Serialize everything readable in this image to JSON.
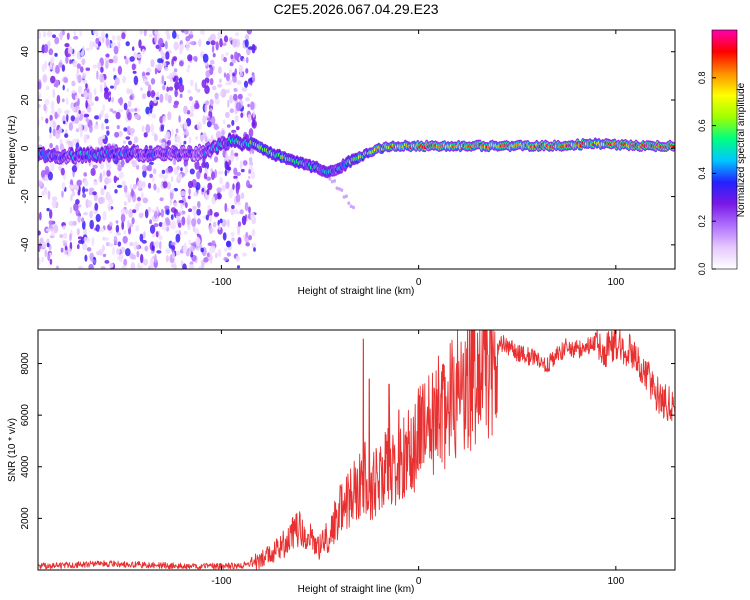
{
  "title": "C2E5.2026.067.04.29.E23",
  "chart_data": [
    {
      "type": "heatmap",
      "name": "spectrogram",
      "xlabel": "Height of straight line (km)",
      "ylabel": "Frequency (Hz)",
      "xlim": [
        -193,
        130
      ],
      "ylim": [
        -50,
        49
      ],
      "xticks": [
        -100,
        0,
        100
      ],
      "yticks": [
        -40,
        -20,
        0,
        20,
        40
      ],
      "tick_labels_x": [
        "-100",
        "0",
        "100"
      ],
      "tick_labels_y": [
        "-40",
        "-20",
        "0",
        "20",
        "40"
      ],
      "noise_region_x": [
        -193,
        -83
      ],
      "noise_freq_range": [
        -50,
        49
      ],
      "ridge": [
        {
          "x": -193,
          "y": -3,
          "amp": 0.35
        },
        {
          "x": -170,
          "y": -3,
          "amp": 0.38
        },
        {
          "x": -150,
          "y": -2,
          "amp": 0.36
        },
        {
          "x": -130,
          "y": -2,
          "amp": 0.33
        },
        {
          "x": -110,
          "y": -2,
          "amp": 0.3
        },
        {
          "x": -95,
          "y": 3,
          "amp": 0.45
        },
        {
          "x": -85,
          "y": 2,
          "amp": 0.6
        },
        {
          "x": -80,
          "y": 0,
          "amp": 0.7
        },
        {
          "x": -75,
          "y": -2,
          "amp": 0.55
        },
        {
          "x": -68,
          "y": -4,
          "amp": 0.6
        },
        {
          "x": -60,
          "y": -6,
          "amp": 0.5
        },
        {
          "x": -52,
          "y": -8,
          "amp": 0.45
        },
        {
          "x": -45,
          "y": -10,
          "amp": 0.4
        },
        {
          "x": -40,
          "y": -8,
          "amp": 0.45
        },
        {
          "x": -34,
          "y": -5,
          "amp": 0.55
        },
        {
          "x": -28,
          "y": -3,
          "amp": 0.6
        },
        {
          "x": -20,
          "y": 0,
          "amp": 0.75
        },
        {
          "x": -12,
          "y": 1,
          "amp": 0.8
        },
        {
          "x": -5,
          "y": 1,
          "amp": 0.78
        },
        {
          "x": 5,
          "y": 1,
          "amp": 0.85
        },
        {
          "x": 15,
          "y": 1,
          "amp": 0.8
        },
        {
          "x": 30,
          "y": 1,
          "amp": 0.78
        },
        {
          "x": 50,
          "y": 1,
          "amp": 0.82
        },
        {
          "x": 70,
          "y": 1,
          "amp": 0.88
        },
        {
          "x": 90,
          "y": 2,
          "amp": 0.8
        },
        {
          "x": 110,
          "y": 1,
          "amp": 0.9
        },
        {
          "x": 130,
          "y": 1,
          "amp": 0.88
        }
      ],
      "colorbar": {
        "label": "Normalized spectral amplitude",
        "range": [
          0,
          1
        ],
        "ticks": [
          0.0,
          0.2,
          0.4,
          0.6,
          0.8
        ],
        "tick_labels": [
          "0.0",
          "0.2",
          "0.4",
          "0.6",
          "0.8"
        ],
        "colors": [
          "#ffffff",
          "#e6c8ff",
          "#b070ff",
          "#7a18e6",
          "#2222ff",
          "#00c8ff",
          "#00ff80",
          "#a0ff00",
          "#ffff00",
          "#ff9000",
          "#ff0000",
          "#ff00b0"
        ]
      }
    },
    {
      "type": "line",
      "name": "snr",
      "xlabel": "Height of straight line (km)",
      "ylabel": "SNR (10 * v/v)",
      "xlim": [
        -193,
        130
      ],
      "ylim": [
        0,
        9300
      ],
      "xticks": [
        -100,
        0,
        100
      ],
      "yticks": [
        2000,
        4000,
        6000,
        8000
      ],
      "tick_labels_x": [
        "-100",
        "0",
        "100"
      ],
      "tick_labels_y": [
        "2000",
        "4000",
        "6000",
        "8000"
      ],
      "color": "#e83030",
      "series": [
        {
          "name": "SNR",
          "x": [
            -193,
            -180,
            -160,
            -140,
            -120,
            -100,
            -90,
            -85,
            -80,
            -75,
            -70,
            -65,
            -60,
            -55,
            -50,
            -45,
            -40,
            -35,
            -30,
            -27,
            -25,
            -20,
            -15,
            -10,
            -5,
            0,
            5,
            10,
            15,
            20,
            25,
            30,
            35,
            40,
            43,
            48,
            55,
            60,
            65,
            70,
            75,
            80,
            85,
            90,
            95,
            100,
            105,
            110,
            115,
            120,
            125,
            130
          ],
          "y": [
            150,
            180,
            250,
            200,
            150,
            150,
            170,
            250,
            400,
            600,
            900,
            1300,
            1600,
            1300,
            900,
            1400,
            2300,
            2800,
            3200,
            3600,
            3000,
            3600,
            4000,
            4200,
            4500,
            5200,
            5600,
            6000,
            6400,
            7000,
            7300,
            7600,
            8000,
            8600,
            8850,
            8500,
            8300,
            8200,
            7900,
            8300,
            8650,
            8550,
            8600,
            8900,
            8500,
            8700,
            8600,
            8200,
            7700,
            6900,
            6500,
            6300
          ]
        }
      ],
      "spikes": [
        {
          "x": -28,
          "y": 8950
        },
        {
          "x": -25,
          "y": 7400
        },
        {
          "x": -15,
          "y": 7200
        },
        {
          "x": -10,
          "y": 6200
        },
        {
          "x": 98,
          "y": 9250
        }
      ]
    }
  ]
}
